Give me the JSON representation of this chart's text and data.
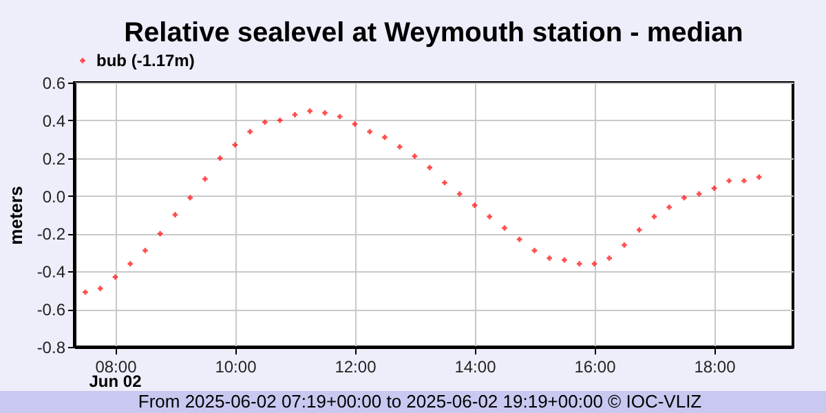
{
  "chart_data": {
    "type": "scatter",
    "title": "Relative sealevel at Weymouth station - median",
    "ylabel": "meters",
    "x": [
      "2025-06-02T07:30",
      "2025-06-02T07:45",
      "2025-06-02T08:00",
      "2025-06-02T08:15",
      "2025-06-02T08:30",
      "2025-06-02T08:45",
      "2025-06-02T09:00",
      "2025-06-02T09:15",
      "2025-06-02T09:30",
      "2025-06-02T09:45",
      "2025-06-02T10:00",
      "2025-06-02T10:15",
      "2025-06-02T10:30",
      "2025-06-02T10:45",
      "2025-06-02T11:00",
      "2025-06-02T11:15",
      "2025-06-02T11:30",
      "2025-06-02T11:45",
      "2025-06-02T12:00",
      "2025-06-02T12:15",
      "2025-06-02T12:30",
      "2025-06-02T12:45",
      "2025-06-02T13:00",
      "2025-06-02T13:15",
      "2025-06-02T13:30",
      "2025-06-02T13:45",
      "2025-06-02T14:00",
      "2025-06-02T14:15",
      "2025-06-02T14:30",
      "2025-06-02T14:45",
      "2025-06-02T15:00",
      "2025-06-02T15:15",
      "2025-06-02T15:30",
      "2025-06-02T15:45",
      "2025-06-02T16:00",
      "2025-06-02T16:15",
      "2025-06-02T16:30",
      "2025-06-02T16:45",
      "2025-06-02T17:00",
      "2025-06-02T17:15",
      "2025-06-02T17:30",
      "2025-06-02T17:45",
      "2025-06-02T18:00",
      "2025-06-02T18:15",
      "2025-06-02T18:30",
      "2025-06-02T18:45"
    ],
    "series": [
      {
        "name": "bub (-1.17m)",
        "color": "#ff0000",
        "values": [
          -0.51,
          -0.49,
          -0.43,
          -0.36,
          -0.29,
          -0.2,
          -0.1,
          -0.01,
          0.09,
          0.2,
          0.27,
          0.34,
          0.39,
          0.4,
          0.43,
          0.45,
          0.44,
          0.42,
          0.38,
          0.34,
          0.31,
          0.26,
          0.21,
          0.15,
          0.07,
          0.01,
          -0.05,
          -0.11,
          -0.17,
          -0.23,
          -0.29,
          -0.33,
          -0.34,
          -0.36,
          -0.36,
          -0.33,
          -0.26,
          -0.18,
          -0.11,
          -0.06,
          -0.01,
          0.01,
          0.04,
          0.08,
          0.08,
          0.1
        ]
      }
    ],
    "xlim": [
      "2025-06-02T07:19",
      "2025-06-02T19:19"
    ],
    "xticks": [
      {
        "value": "2025-06-02T08:00",
        "label": "08:00"
      },
      {
        "value": "2025-06-02T10:00",
        "label": "10:00"
      },
      {
        "value": "2025-06-02T12:00",
        "label": "12:00"
      },
      {
        "value": "2025-06-02T14:00",
        "label": "14:00"
      },
      {
        "value": "2025-06-02T16:00",
        "label": "16:00"
      },
      {
        "value": "2025-06-02T18:00",
        "label": "18:00"
      }
    ],
    "ylim": [
      -0.8,
      0.6
    ],
    "yticks": [
      -0.8,
      -0.6,
      -0.4,
      -0.2,
      {
        "value": 0,
        "label": "0.0"
      },
      0.2,
      0.4,
      0.6
    ],
    "grid": true,
    "legend": "top left",
    "marker": "cross",
    "annotations": [
      "Jun 02",
      "From 2025-06-02 07:19+00:00 to 2025-06-02 19:19+00:00 © IOC-VLIZ"
    ]
  }
}
